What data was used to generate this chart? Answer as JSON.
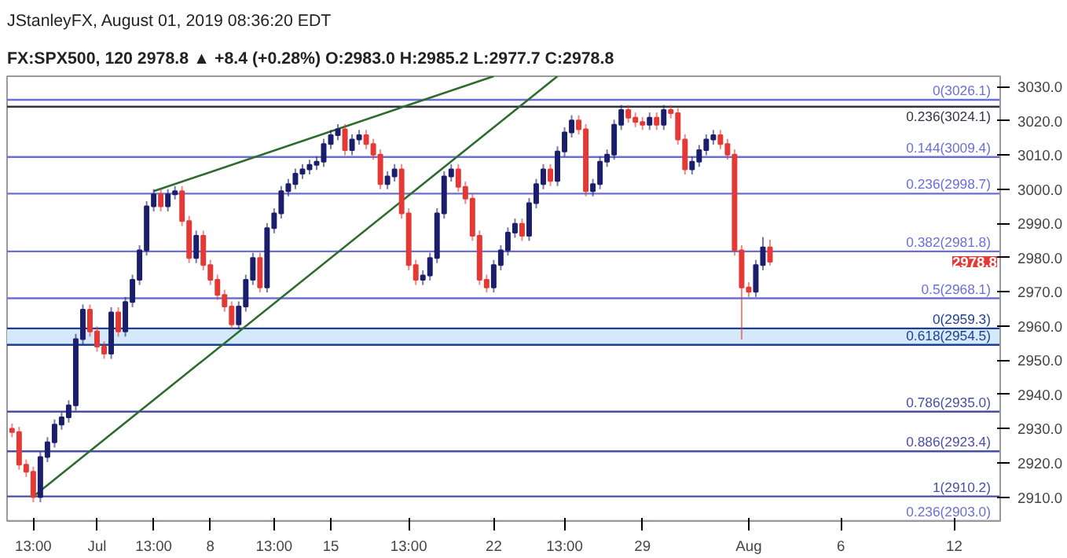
{
  "chart_data": {
    "type": "candlestick",
    "title": "JStanleyFX, August 01, 2019 08:36:20 EDT",
    "subtitle": "FX:SPX500, 120 2978.8 ▲ +8.4 (+0.28%) O:2983.0 H:2985.2 L:2977.7 C:2978.8",
    "categories": [
      null,
      null,
      null,
      "13:00",
      null,
      null,
      null,
      null,
      null,
      null,
      null,
      null,
      "Jul",
      null,
      null,
      null,
      null,
      null,
      null,
      null,
      "13:00",
      null,
      null,
      null,
      null,
      null,
      null,
      null,
      "8",
      null,
      null,
      null,
      null,
      null,
      null,
      null,
      null,
      "13:00",
      null,
      null,
      null,
      null,
      null,
      null,
      null,
      "15",
      null,
      null,
      null,
      null,
      null,
      null,
      null,
      null,
      null,
      null,
      "13:00",
      null,
      null,
      null,
      null,
      null,
      null,
      null,
      null,
      null,
      null,
      null,
      "22",
      null,
      null,
      null,
      null,
      null,
      null,
      null,
      null,
      null,
      "13:00",
      null,
      null,
      null,
      null,
      null,
      null,
      null,
      null,
      null,
      null,
      "29",
      null,
      null,
      null,
      null,
      null,
      null,
      null,
      null,
      null,
      null,
      null,
      null,
      null,
      null,
      "Aug",
      null,
      null,
      null,
      null,
      null,
      null,
      null,
      null,
      null,
      null,
      null,
      null,
      "6",
      null,
      null,
      null,
      null,
      null,
      null,
      null,
      null,
      null,
      null,
      null,
      null,
      null,
      null,
      null,
      "12",
      null,
      null,
      null,
      null,
      null,
      null
    ],
    "ohlc": [
      [
        2930.0,
        2931.5,
        2927.5,
        2929.0
      ],
      [
        2929.0,
        2930.5,
        2918.0,
        2919.5
      ],
      [
        2919.5,
        2921.0,
        2915.9,
        2917.4
      ],
      [
        2917.4,
        2918.9,
        2908.5,
        2910.0
      ],
      [
        2910.0,
        2923.2,
        2908.5,
        2921.7
      ],
      [
        2921.7,
        2927.5,
        2920.2,
        2926.0
      ],
      [
        2926.0,
        2932.7,
        2924.5,
        2931.2
      ],
      [
        2931.2,
        2934.8,
        2929.7,
        2933.3
      ],
      [
        2933.3,
        2938.3,
        2931.8,
        2936.8
      ],
      [
        2936.8,
        2957.7,
        2935.3,
        2956.2
      ],
      [
        2956.2,
        2966.3,
        2954.7,
        2964.8
      ],
      [
        2964.8,
        2966.3,
        2956.9,
        2958.4
      ],
      [
        2958.4,
        2959.9,
        2952.5,
        2954.0
      ],
      [
        2954.0,
        2955.5,
        2950.4,
        2951.9
      ],
      [
        2951.9,
        2965.5,
        2950.4,
        2964.0
      ],
      [
        2964.0,
        2965.5,
        2956.9,
        2958.4
      ],
      [
        2958.4,
        2968.5,
        2956.9,
        2967.0
      ],
      [
        2967.0,
        2975.0,
        2965.5,
        2973.5
      ],
      [
        2973.5,
        2983.6,
        2972.0,
        2982.1
      ],
      [
        2982.1,
        2996.5,
        2980.6,
        2995.0
      ],
      [
        2995.0,
        3000.0,
        2993.5,
        2998.5
      ],
      [
        2998.5,
        3000.0,
        2993.5,
        2995.0
      ],
      [
        2995.0,
        3000.0,
        2993.5,
        2998.5
      ],
      [
        2998.5,
        3000.9,
        2997.0,
        2999.4
      ],
      [
        2999.4,
        3000.9,
        2989.2,
        2990.7
      ],
      [
        2990.7,
        2992.2,
        2978.4,
        2979.9
      ],
      [
        2979.9,
        2987.9,
        2978.4,
        2986.4
      ],
      [
        2986.4,
        2987.9,
        2976.3,
        2977.8
      ],
      [
        2977.8,
        2979.3,
        2972.0,
        2973.5
      ],
      [
        2973.5,
        2975.0,
        2967.6,
        2969.1
      ],
      [
        2969.1,
        2970.6,
        2964.2,
        2965.7
      ],
      [
        2965.7,
        2967.2,
        2959.0,
        2960.5
      ],
      [
        2960.5,
        2967.2,
        2959.0,
        2965.7
      ],
      [
        2965.7,
        2975.0,
        2964.2,
        2973.5
      ],
      [
        2973.5,
        2981.4,
        2972.0,
        2979.9
      ],
      [
        2979.9,
        2981.4,
        2969.8,
        2971.3
      ],
      [
        2971.3,
        2990.1,
        2969.8,
        2988.6
      ],
      [
        2988.6,
        2994.4,
        2987.1,
        2992.9
      ],
      [
        2992.9,
        3000.9,
        2991.4,
        2999.4
      ],
      [
        2999.4,
        3003.0,
        2997.9,
        3001.5
      ],
      [
        3001.5,
        3006.0,
        3000.0,
        3004.5
      ],
      [
        3004.5,
        3007.3,
        3003.0,
        3005.8
      ],
      [
        3005.8,
        3008.6,
        3004.3,
        3007.1
      ],
      [
        3007.1,
        3009.5,
        3005.6,
        3008.0
      ],
      [
        3008.0,
        3014.7,
        3006.5,
        3013.2
      ],
      [
        3013.2,
        3017.3,
        3011.7,
        3015.8
      ],
      [
        3015.8,
        3019.0,
        3014.3,
        3017.5
      ],
      [
        3017.5,
        3019.0,
        3009.9,
        3011.4
      ],
      [
        3011.4,
        3016.0,
        3009.9,
        3014.5
      ],
      [
        3014.5,
        3017.3,
        3013.0,
        3015.8
      ],
      [
        3015.8,
        3017.3,
        3011.7,
        3013.2
      ],
      [
        3013.2,
        3014.7,
        3008.6,
        3010.1
      ],
      [
        3010.1,
        3011.6,
        3000.0,
        3001.5
      ],
      [
        3001.5,
        3005.2,
        3000.0,
        3003.7
      ],
      [
        3003.7,
        3007.3,
        3002.2,
        3005.8
      ],
      [
        3005.8,
        3007.3,
        2991.4,
        2992.9
      ],
      [
        2992.9,
        2994.4,
        2976.3,
        2977.8
      ],
      [
        2977.8,
        2979.3,
        2972.0,
        2973.5
      ],
      [
        2973.5,
        2976.3,
        2972.0,
        2974.8
      ],
      [
        2974.8,
        2981.4,
        2973.3,
        2979.9
      ],
      [
        2979.9,
        2994.4,
        2978.4,
        2992.9
      ],
      [
        2992.9,
        3005.2,
        2991.4,
        3003.7
      ],
      [
        3003.7,
        3007.3,
        3002.2,
        3005.8
      ],
      [
        3005.8,
        3007.3,
        2999.2,
        3000.7
      ],
      [
        3000.7,
        3002.2,
        2995.7,
        2997.2
      ],
      [
        2997.2,
        2998.7,
        2984.9,
        2986.4
      ],
      [
        2986.4,
        2987.9,
        2972.0,
        2973.5
      ],
      [
        2973.5,
        2975.0,
        2969.8,
        2971.3
      ],
      [
        2971.3,
        2979.3,
        2969.8,
        2977.8
      ],
      [
        2977.8,
        2983.6,
        2976.3,
        2982.1
      ],
      [
        2982.1,
        2988.8,
        2980.6,
        2987.3
      ],
      [
        2987.3,
        2991.4,
        2985.8,
        2989.9
      ],
      [
        2989.9,
        2991.4,
        2984.9,
        2986.4
      ],
      [
        2986.4,
        2997.4,
        2984.9,
        2995.9
      ],
      [
        2995.9,
        3003.0,
        2994.4,
        3001.5
      ],
      [
        3001.5,
        3007.3,
        3000.0,
        3005.8
      ],
      [
        3005.8,
        3007.3,
        3000.9,
        3002.4
      ],
      [
        3002.4,
        3012.5,
        3000.9,
        3011.0
      ],
      [
        3011.0,
        3018.1,
        3009.5,
        3016.6
      ],
      [
        3016.6,
        3021.6,
        3015.1,
        3020.1
      ],
      [
        3020.1,
        3021.6,
        3016.0,
        3017.5
      ],
      [
        3017.5,
        3019.0,
        2997.9,
        2999.4
      ],
      [
        2999.4,
        3003.0,
        2997.9,
        3001.5
      ],
      [
        3001.5,
        3009.5,
        3000.0,
        3008.0
      ],
      [
        3008.0,
        3011.6,
        3006.5,
        3010.1
      ],
      [
        3010.1,
        3020.3,
        3008.6,
        3018.8
      ],
      [
        3018.8,
        3024.6,
        3017.3,
        3023.1
      ],
      [
        3023.1,
        3024.6,
        3019.4,
        3020.9
      ],
      [
        3020.9,
        3022.4,
        3018.1,
        3019.6
      ],
      [
        3019.6,
        3021.1,
        3017.3,
        3018.8
      ],
      [
        3018.8,
        3022.4,
        3017.3,
        3020.9
      ],
      [
        3020.9,
        3022.4,
        3017.3,
        3018.8
      ],
      [
        3018.8,
        3024.6,
        3017.3,
        3023.1
      ],
      [
        3023.1,
        3024.6,
        3020.7,
        3022.2
      ],
      [
        3022.2,
        3023.7,
        3013.0,
        3014.5
      ],
      [
        3014.5,
        3016.0,
        3004.3,
        3005.8
      ],
      [
        3005.8,
        3009.5,
        3004.3,
        3008.0
      ],
      [
        3008.0,
        3012.9,
        3006.5,
        3011.4
      ],
      [
        3011.4,
        3016.0,
        3009.9,
        3014.5
      ],
      [
        3014.5,
        3017.3,
        3013.0,
        3015.8
      ],
      [
        3015.8,
        3017.3,
        3011.7,
        3013.2
      ],
      [
        3013.2,
        3014.7,
        3008.6,
        3010.1
      ],
      [
        3010.1,
        3011.6,
        2980.6,
        2982.1
      ],
      [
        2982.1,
        2983.6,
        2956.0,
        2971.3
      ],
      [
        2971.3,
        2972.8,
        2968.5,
        2970.0
      ],
      [
        2970.0,
        2979.3,
        2968.5,
        2977.8
      ],
      [
        2977.8,
        2986.0,
        2976.3,
        2983.0
      ],
      [
        2983.0,
        2985.2,
        2977.7,
        2978.8
      ],
      null,
      null,
      null,
      null,
      null,
      null,
      null,
      null,
      null,
      null,
      null,
      null,
      null,
      null,
      null,
      null,
      null,
      null,
      null,
      null,
      null,
      null,
      null,
      null,
      null,
      null,
      null,
      null,
      null,
      null,
      null,
      null
    ],
    "colors": [
      "#e53935",
      "#e53935",
      "#e53935",
      "#e53935",
      "#1b1f6b",
      "#1b1f6b",
      "#1b1f6b",
      "#1b1f6b",
      "#1b1f6b",
      "#1b1f6b",
      "#1b1f6b",
      "#e53935",
      "#e53935",
      "#e53935",
      "#1b1f6b",
      "#e53935",
      "#1b1f6b",
      "#1b1f6b",
      "#1b1f6b",
      "#1b1f6b",
      "#1b1f6b",
      "#e53935",
      "#1b1f6b",
      "#1b1f6b",
      "#e53935",
      "#e53935",
      "#1b1f6b",
      "#e53935",
      "#e53935",
      "#e53935",
      "#e53935",
      "#e53935",
      "#1b1f6b",
      "#1b1f6b",
      "#1b1f6b",
      "#e53935",
      "#1b1f6b",
      "#1b1f6b",
      "#1b1f6b",
      "#1b1f6b",
      "#1b1f6b",
      "#1b1f6b",
      "#1b1f6b",
      "#1b1f6b",
      "#1b1f6b",
      "#1b1f6b",
      "#1b1f6b",
      "#e53935",
      "#1b1f6b",
      "#1b1f6b",
      "#e53935",
      "#e53935",
      "#e53935",
      "#1b1f6b",
      "#1b1f6b",
      "#e53935",
      "#e53935",
      "#e53935",
      "#1b1f6b",
      "#1b1f6b",
      "#1b1f6b",
      "#1b1f6b",
      "#1b1f6b",
      "#e53935",
      "#e53935",
      "#e53935",
      "#e53935",
      "#e53935",
      "#1b1f6b",
      "#1b1f6b",
      "#1b1f6b",
      "#1b1f6b",
      "#e53935",
      "#1b1f6b",
      "#1b1f6b",
      "#1b1f6b",
      "#e53935",
      "#1b1f6b",
      "#1b1f6b",
      "#1b1f6b",
      "#e53935",
      "#e53935",
      "#1b1f6b",
      "#1b1f6b",
      "#1b1f6b",
      "#1b1f6b",
      "#1b1f6b",
      "#e53935",
      "#e53935",
      "#e53935",
      "#1b1f6b",
      "#e53935",
      "#1b1f6b",
      "#e53935",
      "#e53935",
      "#e53935",
      "#1b1f6b",
      "#1b1f6b",
      "#1b1f6b",
      "#1b1f6b",
      "#e53935",
      "#e53935",
      "#e53935",
      "#e53935",
      "#e53935",
      "#1b1f6b",
      "#1b1f6b",
      "#e53935",
      null,
      null,
      null,
      null,
      null,
      null,
      null,
      null,
      null,
      null,
      null,
      null,
      null,
      null,
      null,
      null,
      null,
      null,
      null,
      null,
      null,
      null,
      null,
      null,
      null,
      null,
      null,
      null,
      null,
      null,
      null,
      null
    ],
    "series": [
      {
        "type": "line",
        "color": "#2e6b2e",
        "values": [
          null,
          null,
          null,
          null,
          null,
          null,
          null,
          null,
          null,
          null,
          null,
          null,
          null,
          null,
          null,
          null,
          null,
          null,
          null,
          null,
          2999.4,
          null,
          null,
          null,
          null,
          null,
          null,
          null,
          null,
          null,
          null,
          null,
          null,
          null,
          null,
          null,
          null,
          null,
          null,
          null,
          null,
          null,
          null,
          null,
          null,
          null,
          null,
          null,
          null,
          null,
          null,
          null,
          null,
          null,
          null,
          null,
          null,
          null,
          null,
          null,
          null,
          null,
          null,
          null,
          null,
          null,
          null,
          null,
          3033.0,
          null,
          null,
          null,
          null,
          null,
          null,
          null,
          null,
          null,
          null,
          null,
          null,
          null,
          null,
          null,
          null,
          null,
          null,
          null,
          null,
          null,
          null,
          null,
          null,
          null,
          null,
          null,
          null,
          null,
          null,
          null,
          null,
          null,
          null,
          null,
          null,
          null,
          null,
          null,
          null,
          null,
          null,
          null,
          null,
          null,
          null,
          null,
          null,
          null,
          null,
          null,
          null,
          null,
          null,
          null,
          null,
          null,
          null,
          null,
          null,
          null,
          null,
          null,
          null,
          null,
          null,
          null,
          null,
          null,
          null,
          null
        ]
      },
      {
        "type": "line",
        "color": "#2e6b2e",
        "values": [
          null,
          null,
          null,
          2910.2,
          null,
          null,
          null,
          null,
          null,
          null,
          null,
          null,
          null,
          null,
          null,
          null,
          null,
          null,
          null,
          null,
          null,
          null,
          null,
          null,
          null,
          null,
          null,
          null,
          null,
          null,
          null,
          null,
          null,
          null,
          null,
          null,
          null,
          null,
          null,
          null,
          null,
          null,
          null,
          null,
          null,
          null,
          null,
          null,
          null,
          null,
          null,
          null,
          null,
          null,
          null,
          null,
          null,
          null,
          null,
          null,
          null,
          null,
          null,
          null,
          null,
          null,
          null,
          null,
          null,
          null,
          null,
          null,
          null,
          null,
          null,
          null,
          null,
          3033.0,
          null,
          null,
          null,
          null,
          null,
          null,
          null,
          null,
          null,
          null,
          null,
          null,
          null,
          null,
          null,
          null,
          null,
          null,
          null,
          null,
          null,
          null,
          null,
          null,
          null,
          null,
          null,
          null,
          null,
          null,
          null,
          null,
          null,
          null,
          null,
          null,
          null,
          null,
          null,
          null,
          null,
          null,
          null,
          null,
          null,
          null,
          null,
          null,
          null,
          null,
          null,
          null,
          null,
          null,
          null,
          null,
          null,
          null,
          null,
          null,
          null,
          null
        ]
      }
    ],
    "ylim": [
      2903,
      3033
    ],
    "yticks": [
      {
        "value": 2910,
        "label": "2910.0"
      },
      {
        "value": 2920,
        "label": "2920.0"
      },
      {
        "value": 2930,
        "label": "2930.0"
      },
      {
        "value": 2940,
        "label": "2940.0"
      },
      {
        "value": 2950,
        "label": "2950.0"
      },
      {
        "value": 2960,
        "label": "2960.0"
      },
      {
        "value": 2970,
        "label": "2970.0"
      },
      {
        "value": 2980,
        "label": "2980.0"
      },
      {
        "value": 2990,
        "label": "2990.0"
      },
      {
        "value": 3000,
        "label": "3000.0"
      },
      {
        "value": 3010,
        "label": "3010.0"
      },
      {
        "value": 3020,
        "label": "3020.0"
      },
      {
        "value": 3030,
        "label": "3030.0"
      }
    ],
    "ref_lines": [
      {
        "axis": "y",
        "value": 3026.1,
        "label": "0(3026.1)",
        "color": "#6a6fd6"
      },
      {
        "axis": "y",
        "value": 3024.1,
        "label": "0.236(3024.1)",
        "color": "#333344"
      },
      {
        "axis": "y",
        "value": 3009.4,
        "label": "0.144(3009.4)",
        "color": "#6a6fd6"
      },
      {
        "axis": "y",
        "value": 2998.7,
        "label": "0.236(2998.7)",
        "color": "#6a6fd6"
      },
      {
        "axis": "y",
        "value": 2981.8,
        "label": "0.382(2981.8)",
        "color": "#6a6fd6"
      },
      {
        "axis": "y",
        "value": 2968.1,
        "label": "0.5(2968.1)",
        "color": "#6a6fd6"
      },
      {
        "axis": "y",
        "value": 2959.3,
        "label": "0(2959.3)",
        "color": "#1f3f8f"
      },
      {
        "axis": "y",
        "value": 2954.5,
        "label": "0.618(2954.5)",
        "color": "#1f3f8f"
      },
      {
        "axis": "y",
        "value": 2935.0,
        "label": "0.786(2935.0)",
        "color": "#4a4fa6"
      },
      {
        "axis": "y",
        "value": 2923.4,
        "label": "0.886(2923.4)",
        "color": "#4a4fa6"
      },
      {
        "axis": "y",
        "value": 2910.2,
        "label": "1(2910.2)",
        "color": "#4a4fa6"
      },
      {
        "axis": "y",
        "value": 2903.0,
        "label": "0.236(2903.0)",
        "color": "#6a6fd6"
      }
    ],
    "bands": [
      {
        "axis": "y",
        "from": 2954.5,
        "to": 2959.3,
        "color": "#d4e9fb"
      }
    ],
    "annotations": [
      "2978.8"
    ]
  }
}
